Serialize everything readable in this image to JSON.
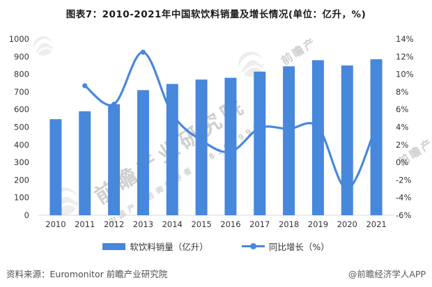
{
  "title": "图表7：2010-2021年中国软饮料销量及增长情况(单位：亿升，%)",
  "chart_data": {
    "type": "bar",
    "subtype": "bar+line dual-axis",
    "categories": [
      "2010",
      "2011",
      "2012",
      "2013",
      "2014",
      "2015",
      "2016",
      "2017",
      "2018",
      "2019",
      "2020",
      "2021"
    ],
    "series": [
      {
        "name": "软饮料销量（亿升）",
        "type": "bar",
        "axis": "left",
        "values": [
          545,
          590,
          630,
          710,
          745,
          770,
          780,
          815,
          845,
          880,
          850,
          885
        ]
      },
      {
        "name": "同比增长（%）",
        "type": "line",
        "axis": "right",
        "values": [
          null,
          8.7,
          6.6,
          12.5,
          5.5,
          2.5,
          1.2,
          3.9,
          3.8,
          4.0,
          -3.0,
          4.2
        ]
      }
    ],
    "left_axis": {
      "min": 0,
      "max": 1000,
      "step": 100,
      "suffix": ""
    },
    "right_axis": {
      "min": -6,
      "max": 14,
      "step": 2,
      "suffix": "%"
    },
    "grid": false,
    "legend_position": "bottom",
    "colors": {
      "bar": "#4787DC",
      "line": "#4787DC",
      "axis_line": "#d9d9d9",
      "tick_text": "#333333"
    }
  },
  "legend": {
    "items": [
      {
        "label": "软饮料销量（亿升）"
      },
      {
        "label": "同比增长（%）"
      }
    ]
  },
  "footer": {
    "source": "资料来源：Euromonitor 前瞻产业研究院",
    "credit": "@前瞻经济学人APP"
  },
  "watermark": {
    "text": "前瞻产业研究院",
    "subtext": "中国产业咨询领导者",
    "digits": "8393999"
  }
}
